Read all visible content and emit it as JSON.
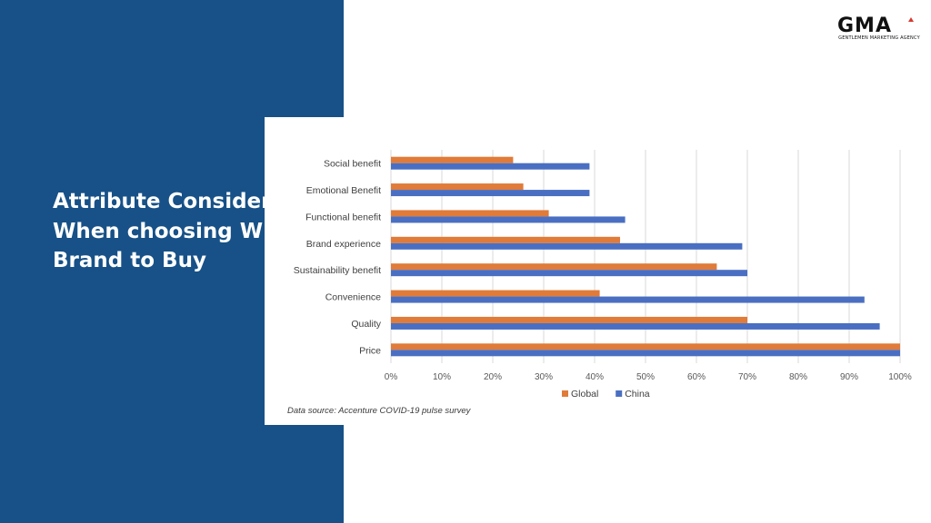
{
  "slide": {
    "title": "Attribute Considered When choosing Which Brand to Buy",
    "source": "Data source: Accenture COVID-19 pulse survey",
    "logo": {
      "mark": "GMA",
      "subtitle": "GENTLEMEN MARKETING AGENCY",
      "accent": "#d63a2f"
    },
    "colors": {
      "panel": "#175187",
      "background": "#ffffff"
    }
  },
  "chart_data": {
    "type": "bar",
    "orientation": "horizontal",
    "categories": [
      "Social benefit",
      "Emotional Benefit",
      "Functional benefit",
      "Brand experience",
      "Sustainability benefit",
      "Convenience",
      "Quality",
      "Price"
    ],
    "series": [
      {
        "name": "Global",
        "color": "#e07b39",
        "values": [
          24,
          26,
          31,
          45,
          64,
          41,
          70,
          100
        ]
      },
      {
        "name": "China",
        "color": "#4a6fc2",
        "values": [
          39,
          39,
          46,
          69,
          70,
          93,
          96,
          100
        ]
      }
    ],
    "xlim": [
      0,
      100
    ],
    "xticks": [
      "0%",
      "10%",
      "20%",
      "30%",
      "40%",
      "50%",
      "60%",
      "70%",
      "80%",
      "90%",
      "100%"
    ],
    "grid": true,
    "legend": "bottom"
  }
}
